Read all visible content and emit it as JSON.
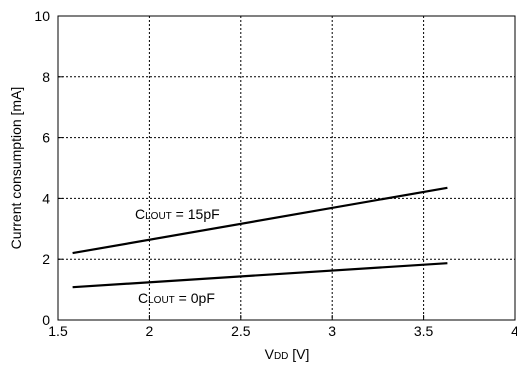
{
  "chart_data": {
    "type": "line",
    "xlabel": {
      "main": "V",
      "sub": "DD",
      "rest": " [V]"
    },
    "ylabel": "Current consumption [mA]",
    "xlim": [
      1.5,
      4
    ],
    "ylim": [
      0,
      10
    ],
    "xticks": [
      1.5,
      2,
      2.5,
      3,
      3.5,
      4
    ],
    "yticks": [
      0,
      2,
      4,
      6,
      8,
      10
    ],
    "xtick_labels": [
      "1.5",
      "2",
      "2.5",
      "3",
      "3.5",
      "4"
    ],
    "ytick_labels": [
      "0",
      "2",
      "4",
      "6",
      "8",
      "10"
    ],
    "grid": true,
    "grid_style": "dotted",
    "series": [
      {
        "label": {
          "main": "C",
          "sub": "LOUT",
          "rest": " = 15pF"
        },
        "x": [
          1.58,
          3.63
        ],
        "y": [
          2.2,
          4.35
        ]
      },
      {
        "label": {
          "main": "C",
          "sub": "LOUT",
          "rest": " = 0pF"
        },
        "x": [
          1.58,
          3.63
        ],
        "y": [
          1.08,
          1.87
        ]
      }
    ],
    "colors": {
      "line": "#000000",
      "grid": "#000000",
      "frame": "#000000"
    }
  }
}
